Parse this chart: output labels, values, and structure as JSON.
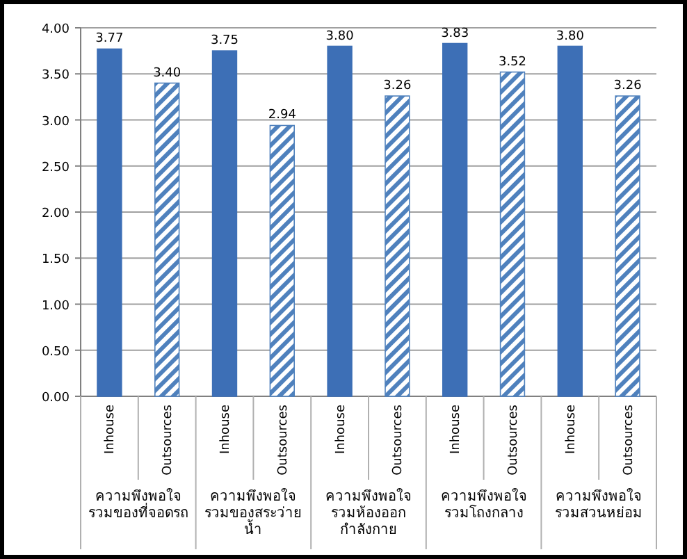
{
  "chart_data": {
    "type": "bar",
    "categories": [
      "ความพึงพอใจรวมของที่จอดรถ",
      "ความพึงพอใจรวมของสระว่ายน้ำ",
      "ความพึงพอใจรวมห้องออกกำลังกาย",
      "ความพึงพอใจรวมโถงกลาง",
      "ความพึงพอใจรวมสวนหย่อม"
    ],
    "series": [
      {
        "name": "Inhouse",
        "color": "#3d6fb6",
        "values": [
          3.77,
          3.75,
          3.8,
          3.83,
          3.8
        ],
        "value_labels": [
          "3.77",
          "3.75",
          "3.80",
          "3.83",
          "3.80"
        ]
      },
      {
        "name": "Outsources",
        "color": "#4f81bd",
        "values": [
          3.4,
          2.94,
          3.26,
          3.52,
          3.26
        ],
        "value_labels": [
          "3.40",
          "2.94",
          "3.26",
          "3.52",
          "3.26"
        ]
      }
    ],
    "ylim": [
      0,
      4
    ],
    "yticks": [
      {
        "value": 0,
        "label": "0.00"
      },
      {
        "value": 0.5,
        "label": "0.50"
      },
      {
        "value": 1,
        "label": "1.00"
      },
      {
        "value": 1.5,
        "label": "1.50"
      },
      {
        "value": 2,
        "label": "2.00"
      },
      {
        "value": 2.5,
        "label": "2.50"
      },
      {
        "value": 3,
        "label": "3.00"
      },
      {
        "value": 3.5,
        "label": "3.50"
      },
      {
        "value": 4,
        "label": "4.00"
      }
    ],
    "grid": "y"
  }
}
